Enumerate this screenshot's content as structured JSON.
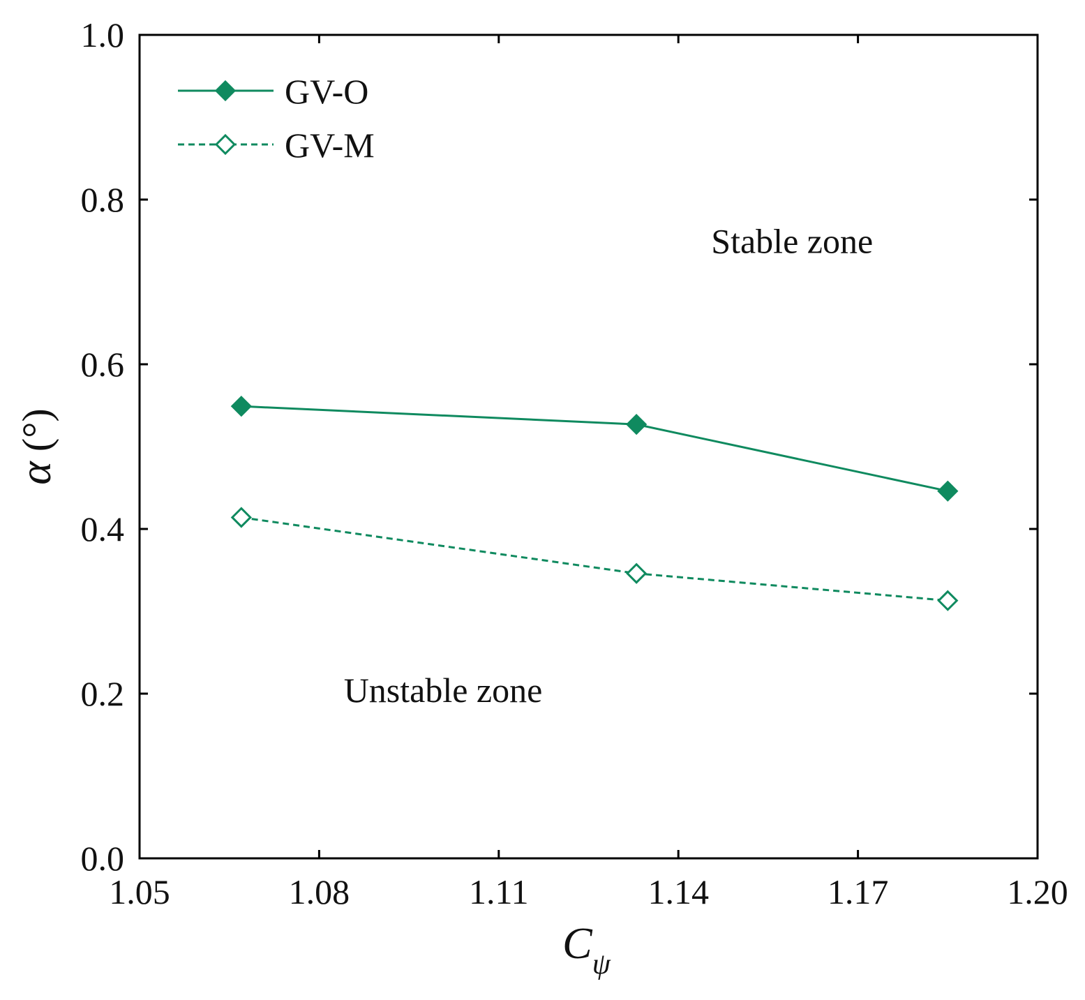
{
  "chart_data": {
    "type": "line",
    "title": "",
    "xlabel": "C",
    "xlabel_sub": "ψ",
    "ylabel": "α",
    "ylabel_unit": "(°)",
    "xlim": [
      1.05,
      1.2
    ],
    "ylim": [
      0.0,
      1.0
    ],
    "xticks": [
      1.05,
      1.08,
      1.11,
      1.14,
      1.17,
      1.2
    ],
    "xtick_labels": [
      "1.05",
      "1.08",
      "1.11",
      "1.14",
      "1.17",
      "1.20"
    ],
    "yticks": [
      0.0,
      0.2,
      0.4,
      0.6,
      0.8,
      1.0
    ],
    "ytick_labels": [
      "0.0",
      "0.2",
      "0.4",
      "0.6",
      "0.8",
      "1.0"
    ],
    "grid": false,
    "legend_position": "top-left",
    "color": "#0f8a5f",
    "series": [
      {
        "name": "GV-O",
        "style": "solid",
        "marker": "filled-diamond",
        "x": [
          1.067,
          1.133,
          1.185
        ],
        "y": [
          0.549,
          0.527,
          0.446
        ]
      },
      {
        "name": "GV-M",
        "style": "dashed",
        "marker": "open-diamond",
        "x": [
          1.067,
          1.133,
          1.185
        ],
        "y": [
          0.414,
          0.346,
          0.313
        ]
      }
    ],
    "annotations": [
      {
        "text": "Stable zone",
        "x": 1.159,
        "y": 0.735
      },
      {
        "text": "Unstable zone",
        "x": 1.1007,
        "y": 0.19
      }
    ]
  }
}
